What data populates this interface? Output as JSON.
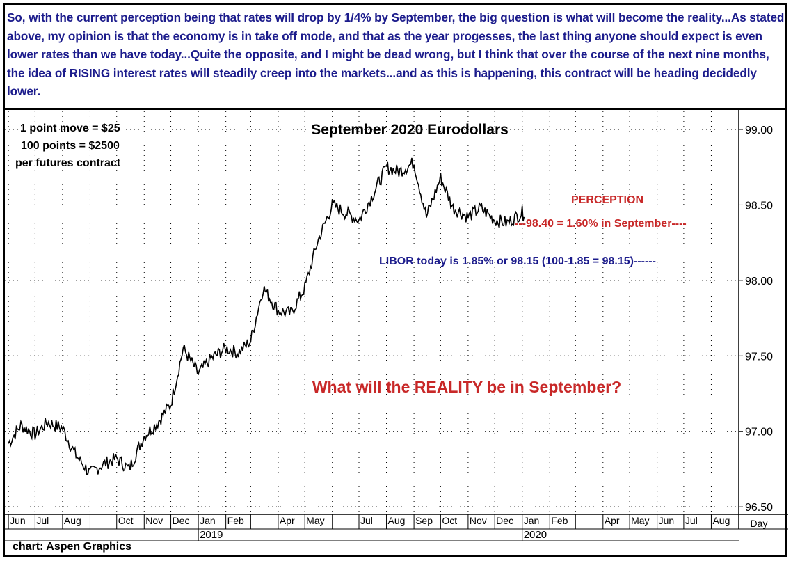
{
  "commentary": "So, with the current perception being that rates will drop by 1/4% by September, the big question is what will become the reality...As stated above, my opinion is that the economy is in take off mode, and that as the year progesses, the last thing anyone should expect is even lower rates than we have today...Quite the opposite, and I might be dead wrong, but I think that over the course of the next nine months, the idea of RISING interest rates will steadily creep into the markets...and as this is happening, this contract will be heading decidedly lower.",
  "contract_notes": [
    "1 point move = $25",
    "100 points = $2500",
    "per futures contract"
  ],
  "annotations": {
    "perception_title": "PERCEPTION",
    "perception_line": "---98.40 = 1.60% in September----",
    "libor_line": "LIBOR today is 1.85% or 98.15 (100-1.85 = 98.15)------",
    "question": "What will the REALITY be in September?"
  },
  "credit": "chart: Aspen Graphics",
  "colors": {
    "commentary": "#1c1c8c",
    "perception": "#c82828",
    "libor": "#1c1c8c",
    "question": "#c82828",
    "price": "#000000"
  },
  "chart_data": {
    "type": "line",
    "title": "September 2020 Eurodollars",
    "period": "Day",
    "ylim": [
      96.45,
      99.12
    ],
    "y_ticks": [
      "96.50",
      "97.00",
      "97.50",
      "98.00",
      "98.50",
      "99.00"
    ],
    "x_month_labels": [
      "Jun",
      "Jul",
      "Aug",
      "Oct",
      "Nov",
      "Dec",
      "Jan",
      "Feb",
      "Apr",
      "May",
      "Jul",
      "Aug",
      "Sep",
      "Oct",
      "Nov",
      "Dec",
      "Jan",
      "Feb",
      "Apr",
      "May",
      "Jun",
      "Jul",
      "Aug"
    ],
    "year_labels": [
      "2019",
      "2020"
    ],
    "reference_levels": [
      98.4,
      98.15
    ],
    "x_axis_grid": true,
    "grid": true,
    "series": [
      {
        "x": [
          "2018-06-01",
          "2018-06-15",
          "2018-07-01",
          "2018-07-15",
          "2018-08-01",
          "2018-08-15",
          "2018-09-01",
          "2018-09-15",
          "2018-10-01",
          "2018-10-15",
          "2018-11-01",
          "2018-11-15",
          "2018-12-01",
          "2018-12-15",
          "2019-01-01",
          "2019-01-15",
          "2019-02-01",
          "2019-02-15",
          "2019-03-01",
          "2019-03-15",
          "2019-04-01",
          "2019-04-15",
          "2019-05-01",
          "2019-05-15",
          "2019-06-01",
          "2019-06-15",
          "2019-07-01",
          "2019-07-15",
          "2019-08-01",
          "2019-08-15",
          "2019-09-01",
          "2019-09-15",
          "2019-10-01",
          "2019-10-15",
          "2019-11-01",
          "2019-11-15",
          "2019-12-01",
          "2019-12-15",
          "2020-01-01",
          "2020-01-03"
        ],
        "values": [
          96.92,
          97.04,
          96.98,
          97.06,
          97.02,
          96.85,
          96.72,
          96.78,
          96.82,
          96.75,
          96.97,
          97.05,
          97.18,
          97.55,
          97.38,
          97.48,
          97.55,
          97.52,
          97.6,
          97.95,
          97.8,
          97.78,
          97.95,
          98.25,
          98.5,
          98.45,
          98.4,
          98.55,
          98.75,
          98.72,
          98.78,
          98.42,
          98.68,
          98.48,
          98.42,
          98.48,
          98.4,
          98.38,
          98.45,
          98.42
        ]
      }
    ]
  }
}
